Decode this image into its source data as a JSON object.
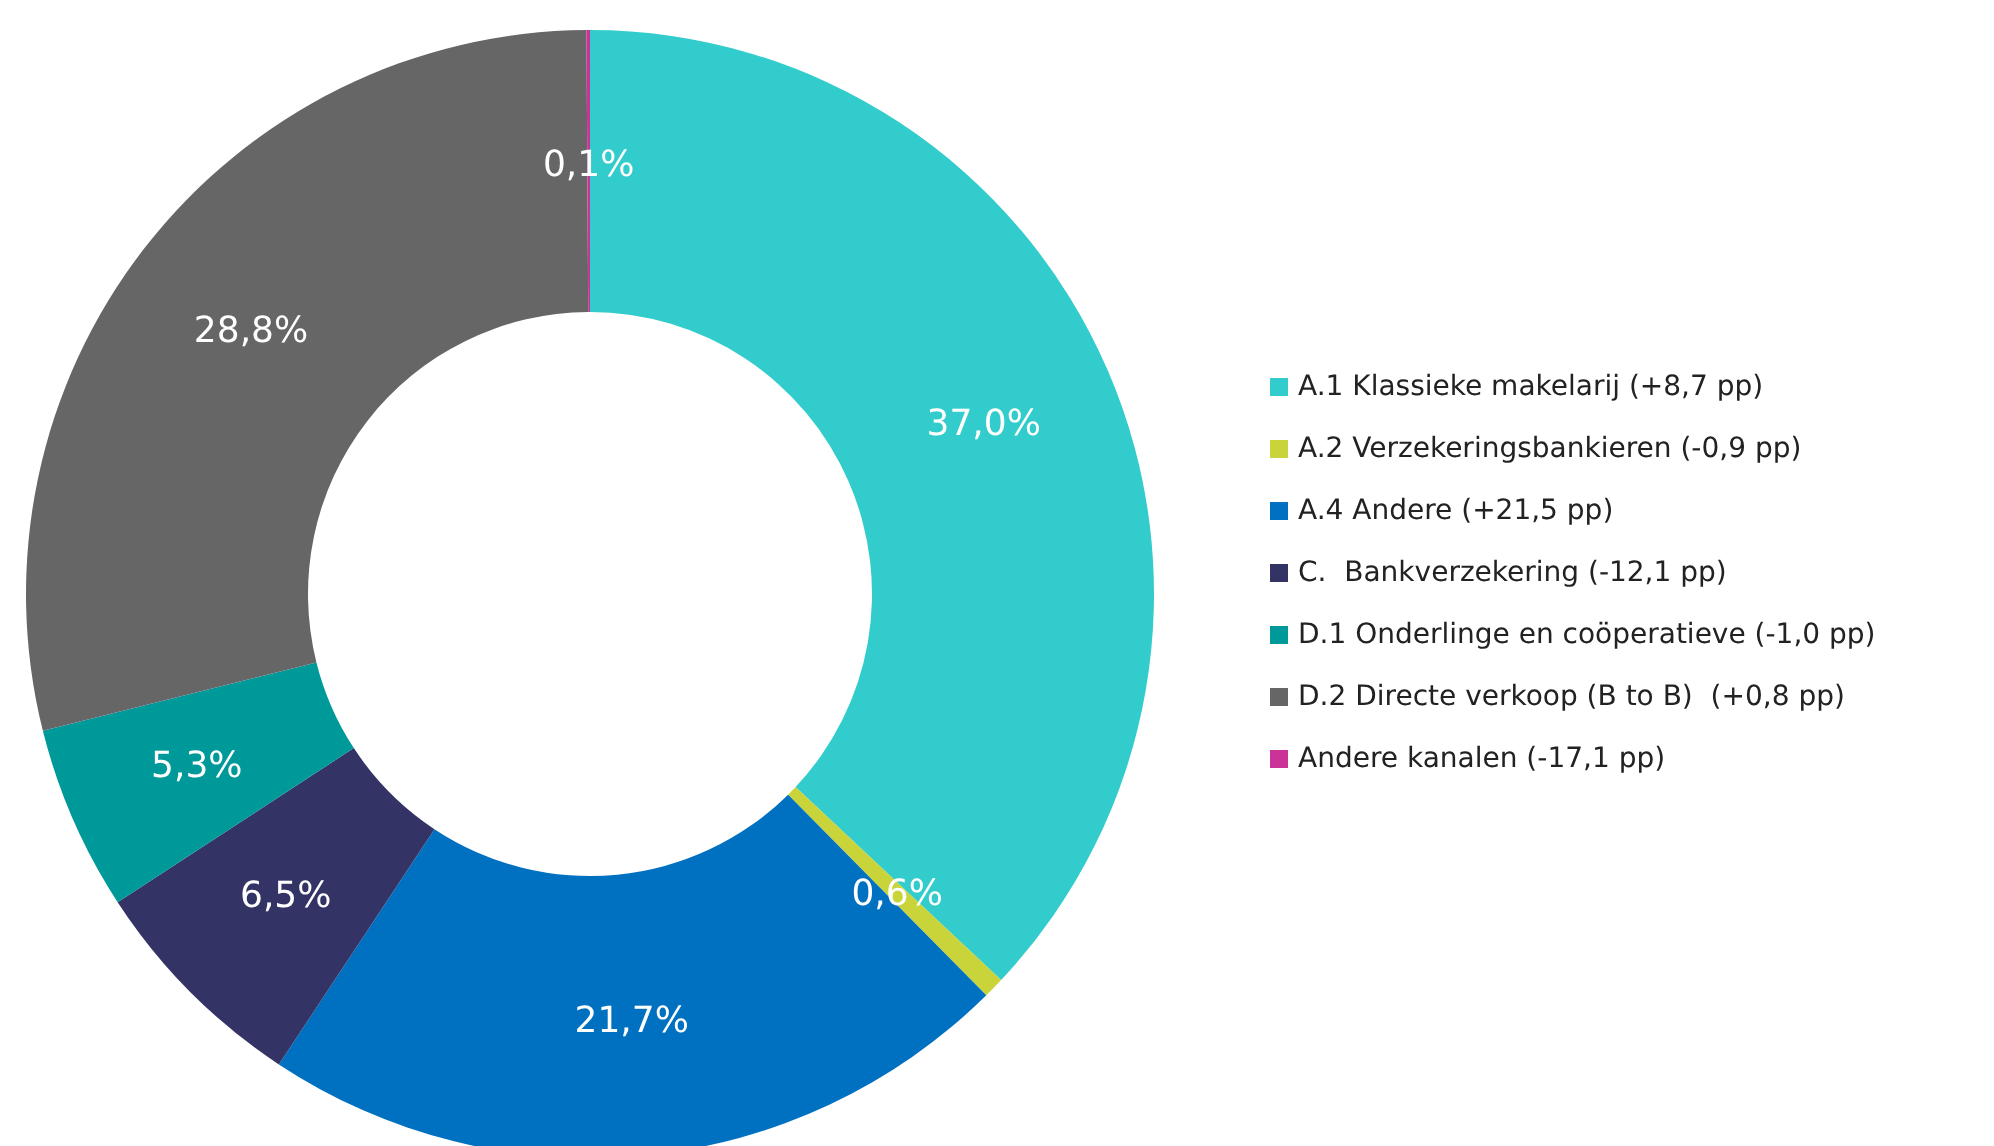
{
  "chart_data": {
    "type": "donut",
    "categories": [
      "A.1 Klassieke makelarij (+8,7 pp)",
      "A.2 Verzekeringsbankieren (-0,9 pp)",
      "A.4 Andere (+21,5 pp)",
      "C.  Bankverzekering (-12,1 pp)",
      "D.1 Onderlinge en coöperatieve (-1,0 pp)",
      "D.2 Directe verkoop (B to B)  (+0,8 pp)",
      "Andere kanalen (-17,1 pp)"
    ],
    "values": [
      37.0,
      0.6,
      21.7,
      6.5,
      5.3,
      28.8,
      0.1
    ],
    "value_labels": [
      "37,0%",
      "0,6%",
      "21,7%",
      "6,5%",
      "5,3%",
      "28,8%",
      "0,1%"
    ],
    "colors": [
      "#33cccc",
      "#c8d43a",
      "#0070c0",
      "#333366",
      "#009999",
      "#666666",
      "#cc3399"
    ],
    "legend": "right"
  }
}
